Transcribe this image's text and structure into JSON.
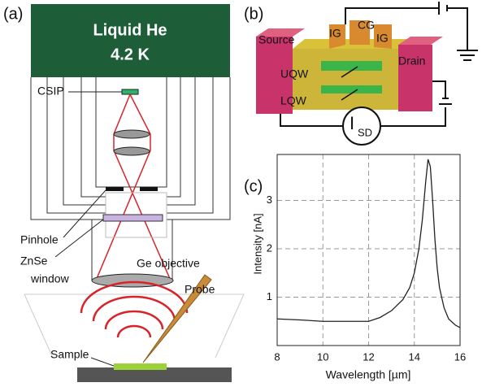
{
  "panel_a": {
    "label": "(a)",
    "cryostat_title": "Liquid He",
    "temperature": "4.2 K",
    "csip": "CSIP",
    "pinhole": "Pinhole",
    "window": [
      "ZnSe",
      "window"
    ],
    "objective": "Ge objective",
    "probe": "Probe",
    "sample": "Sample"
  },
  "panel_b": {
    "label": "(b)",
    "source": "Source",
    "gates": [
      "IG",
      "CG",
      "IG"
    ],
    "drain": "Drain",
    "uqw": "UQW",
    "lqw": "LQW",
    "current": {
      "main": "I",
      "sub": "SD"
    }
  },
  "chart_data": {
    "type": "line",
    "panel_label": "(c)",
    "x_label": "Wavelength [µm]",
    "y_label": "Intensity [nA]",
    "x": [
      8,
      9,
      10,
      11,
      12,
      12.5,
      13,
      13.5,
      13.8,
      14,
      14.2,
      14.35,
      14.5,
      14.6,
      14.7,
      14.8,
      14.9,
      15.0,
      15.1,
      15.3,
      15.5,
      15.8,
      16
    ],
    "series": [
      {
        "color": "#222222",
        "values": [
          0.55,
          0.53,
          0.5,
          0.5,
          0.5,
          0.58,
          0.72,
          0.95,
          1.2,
          1.5,
          2.0,
          2.6,
          3.4,
          3.85,
          3.7,
          3.0,
          2.2,
          1.6,
          1.2,
          0.78,
          0.55,
          0.42,
          0.37
        ]
      }
    ],
    "xlim": [
      8,
      16
    ],
    "ylim": [
      0,
      3.95
    ],
    "xticks": [
      8,
      10,
      12,
      14,
      16
    ],
    "yticks": [
      1,
      2,
      3
    ],
    "grid": true
  }
}
